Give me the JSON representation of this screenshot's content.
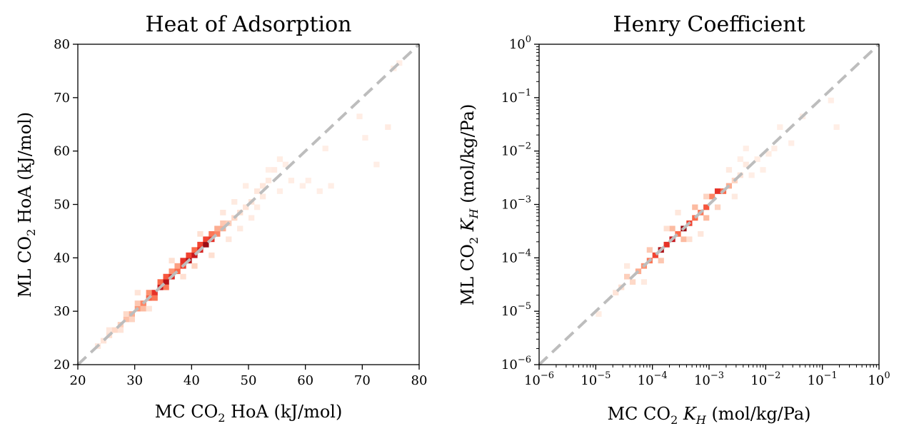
{
  "chart_data": [
    {
      "type": "heatmap",
      "title": "Heat of Adsorption",
      "xlabel": {
        "main": "MC CO",
        "sub": "2",
        "rest": " HoA (kJ/mol)"
      },
      "ylabel": {
        "main": "ML CO",
        "sub": "2",
        "rest": " HoA (kJ/mol)"
      },
      "xlim": [
        20,
        80
      ],
      "ylim": [
        20,
        80
      ],
      "scale": "linear",
      "xticks": [
        "20",
        "30",
        "40",
        "50",
        "60",
        "70",
        "80"
      ],
      "yticks": [
        "20",
        "30",
        "40",
        "50",
        "60",
        "70",
        "80"
      ],
      "xtick_values": [
        20,
        30,
        40,
        50,
        60,
        70,
        80
      ],
      "ytick_values": [
        20,
        30,
        40,
        50,
        60,
        70,
        80
      ],
      "parity_line": {
        "from": [
          20,
          20
        ],
        "to": [
          80,
          80
        ],
        "color": "#bdbdbd",
        "style": "dashed"
      },
      "bin_size": 1,
      "colormap": "Reds",
      "cells": [
        [
          23,
          23,
          0.1
        ],
        [
          24,
          24,
          0.12
        ],
        [
          25,
          25,
          0.15
        ],
        [
          25,
          26,
          0.1
        ],
        [
          26,
          26,
          0.18
        ],
        [
          27,
          27,
          0.22
        ],
        [
          27,
          26,
          0.12
        ],
        [
          28,
          28,
          0.28
        ],
        [
          28,
          29,
          0.18
        ],
        [
          29,
          29,
          0.35
        ],
        [
          29,
          28,
          0.2
        ],
        [
          30,
          30,
          0.42
        ],
        [
          30,
          31,
          0.25
        ],
        [
          31,
          31,
          0.5
        ],
        [
          31,
          30,
          0.3
        ],
        [
          32,
          32,
          0.62
        ],
        [
          32,
          33,
          0.45
        ],
        [
          33,
          33,
          0.75
        ],
        [
          33,
          32,
          0.55
        ],
        [
          34,
          34,
          0.85
        ],
        [
          34,
          35,
          0.6
        ],
        [
          35,
          35,
          0.9
        ],
        [
          35,
          34,
          0.55
        ],
        [
          35,
          36,
          0.65
        ],
        [
          36,
          36,
          0.78
        ],
        [
          36,
          37,
          0.45
        ],
        [
          37,
          37,
          0.6
        ],
        [
          37,
          38,
          0.4
        ],
        [
          38,
          38,
          0.7
        ],
        [
          38,
          39,
          0.75
        ],
        [
          39,
          39,
          0.9
        ],
        [
          39,
          40,
          0.7
        ],
        [
          40,
          40,
          0.85
        ],
        [
          40,
          41,
          0.6
        ],
        [
          41,
          41,
          0.8
        ],
        [
          41,
          42,
          0.7
        ],
        [
          42,
          42,
          0.95
        ],
        [
          42,
          43,
          0.7
        ],
        [
          43,
          43,
          0.75
        ],
        [
          43,
          44,
          0.55
        ],
        [
          44,
          44,
          0.5
        ],
        [
          44,
          45,
          0.35
        ],
        [
          45,
          45,
          0.35
        ],
        [
          45,
          46,
          0.25
        ],
        [
          46,
          46,
          0.22
        ],
        [
          47,
          47,
          0.18
        ],
        [
          48,
          48,
          0.15
        ],
        [
          49,
          49,
          0.12
        ],
        [
          50,
          50,
          0.12
        ],
        [
          51,
          52,
          0.1
        ],
        [
          52,
          53,
          0.1
        ],
        [
          53,
          54,
          0.08
        ],
        [
          54,
          56,
          0.07
        ],
        [
          55,
          58,
          0.06
        ],
        [
          57,
          54,
          0.06
        ],
        [
          59,
          53,
          0.05
        ],
        [
          60,
          54,
          0.05
        ],
        [
          62,
          52,
          0.05
        ],
        [
          63,
          60,
          0.05
        ],
        [
          64,
          53,
          0.05
        ],
        [
          69,
          66,
          0.06
        ],
        [
          70,
          62,
          0.05
        ],
        [
          72,
          57,
          0.05
        ],
        [
          74,
          64,
          0.07
        ],
        [
          75,
          75,
          0.06
        ],
        [
          76,
          76,
          0.05
        ],
        [
          30,
          33,
          0.12
        ],
        [
          32,
          30,
          0.12
        ],
        [
          36,
          39,
          0.15
        ],
        [
          38,
          36,
          0.15
        ],
        [
          40,
          38,
          0.2
        ],
        [
          41,
          44,
          0.15
        ],
        [
          43,
          40,
          0.15
        ],
        [
          45,
          48,
          0.1
        ],
        [
          46,
          43,
          0.1
        ],
        [
          47,
          50,
          0.08
        ],
        [
          48,
          45,
          0.08
        ],
        [
          50,
          47,
          0.07
        ],
        [
          49,
          53,
          0.06
        ],
        [
          51,
          49,
          0.06
        ],
        [
          53,
          56,
          0.05
        ],
        [
          55,
          52,
          0.05
        ],
        [
          56,
          57,
          0.05
        ],
        [
          52,
          51,
          0.08
        ]
      ]
    },
    {
      "type": "heatmap",
      "title": "Henry Coefficient",
      "xlabel": {
        "main": "MC CO",
        "sub": "2",
        "k": "K",
        "ksub": "H",
        "rest": " (mol/kg/Pa)"
      },
      "ylabel": {
        "main": "ML CO",
        "sub": "2",
        "k": "K",
        "ksub": "H",
        "rest": " (mol/kg/Pa)"
      },
      "xlim": [
        1e-06,
        1
      ],
      "ylim": [
        1e-06,
        1
      ],
      "scale": "log",
      "xticks": [
        "10",
        "10",
        "10",
        "10",
        "10",
        "10",
        "10"
      ],
      "xtick_exponents": [
        "−6",
        "−5",
        "−4",
        "−3",
        "−2",
        "−1",
        "0"
      ],
      "yticks": [
        "10",
        "10",
        "10",
        "10",
        "10",
        "10",
        "10"
      ],
      "ytick_exponents": [
        "−6",
        "−5",
        "−4",
        "−3",
        "−2",
        "−1",
        "0"
      ],
      "xtick_values": [
        -6,
        -5,
        -4,
        -3,
        -2,
        -1,
        0
      ],
      "ytick_values": [
        -6,
        -5,
        -4,
        -3,
        -2,
        -1,
        0
      ],
      "parity_line": {
        "from": [
          1e-06,
          1e-06
        ],
        "to": [
          1,
          1
        ],
        "color": "#bdbdbd",
        "style": "dashed"
      },
      "bin_size_log10": 0.1,
      "colormap": "Reds",
      "cells": [
        [
          -5.0,
          -5.1,
          0.06
        ],
        [
          -4.7,
          -4.7,
          0.12
        ],
        [
          -4.6,
          -4.6,
          0.15
        ],
        [
          -4.5,
          -4.4,
          0.22
        ],
        [
          -4.4,
          -4.5,
          0.18
        ],
        [
          -4.3,
          -4.3,
          0.35
        ],
        [
          -4.2,
          -4.2,
          0.45
        ],
        [
          -4.1,
          -4.1,
          0.55
        ],
        [
          -4.0,
          -4.0,
          0.7
        ],
        [
          -3.9,
          -3.9,
          0.92
        ],
        [
          -3.8,
          -3.8,
          0.75
        ],
        [
          -3.7,
          -3.7,
          0.85
        ],
        [
          -3.6,
          -3.6,
          0.6
        ],
        [
          -3.5,
          -3.5,
          0.95
        ],
        [
          -3.4,
          -3.4,
          0.7
        ],
        [
          -3.3,
          -3.3,
          0.6
        ],
        [
          -3.2,
          -3.2,
          0.55
        ],
        [
          -3.1,
          -3.1,
          0.65
        ],
        [
          -3.0,
          -2.9,
          0.5
        ],
        [
          -2.9,
          -2.8,
          0.75
        ],
        [
          -2.8,
          -2.8,
          0.6
        ],
        [
          -2.7,
          -2.7,
          0.35
        ],
        [
          -2.6,
          -2.6,
          0.2
        ],
        [
          -2.5,
          -2.5,
          0.12
        ],
        [
          -2.4,
          -2.3,
          0.08
        ],
        [
          -2.2,
          -2.2,
          0.06
        ],
        [
          -2.0,
          -2.1,
          0.06
        ],
        [
          -1.8,
          -1.6,
          0.05
        ],
        [
          -1.6,
          -1.9,
          0.05
        ],
        [
          -1.4,
          -1.4,
          0.05
        ],
        [
          -0.9,
          -1.1,
          0.05
        ],
        [
          -0.8,
          -1.6,
          0.05
        ],
        [
          -4.1,
          -3.9,
          0.25
        ],
        [
          -3.9,
          -4.1,
          0.25
        ],
        [
          -3.7,
          -3.5,
          0.3
        ],
        [
          -3.5,
          -3.7,
          0.3
        ],
        [
          -3.3,
          -3.1,
          0.3
        ],
        [
          -3.1,
          -3.3,
          0.3
        ],
        [
          -2.9,
          -3.1,
          0.2
        ],
        [
          -3.1,
          -2.9,
          0.2
        ],
        [
          -4.5,
          -4.2,
          0.08
        ],
        [
          -4.2,
          -4.5,
          0.08
        ],
        [
          -3.6,
          -3.2,
          0.1
        ],
        [
          -3.2,
          -3.6,
          0.1
        ],
        [
          -2.7,
          -2.4,
          0.08
        ],
        [
          -2.6,
          -2.9,
          0.08
        ],
        [
          -2.3,
          -2.5,
          0.05
        ],
        [
          -2.5,
          -2.2,
          0.05
        ],
        [
          -3.8,
          -3.5,
          0.15
        ],
        [
          -3.4,
          -3.7,
          0.15
        ],
        [
          -2.4,
          -2.0,
          0.05
        ],
        [
          -2.1,
          -2.4,
          0.05
        ],
        [
          -1.9,
          -2.0,
          0.05
        ]
      ]
    }
  ]
}
